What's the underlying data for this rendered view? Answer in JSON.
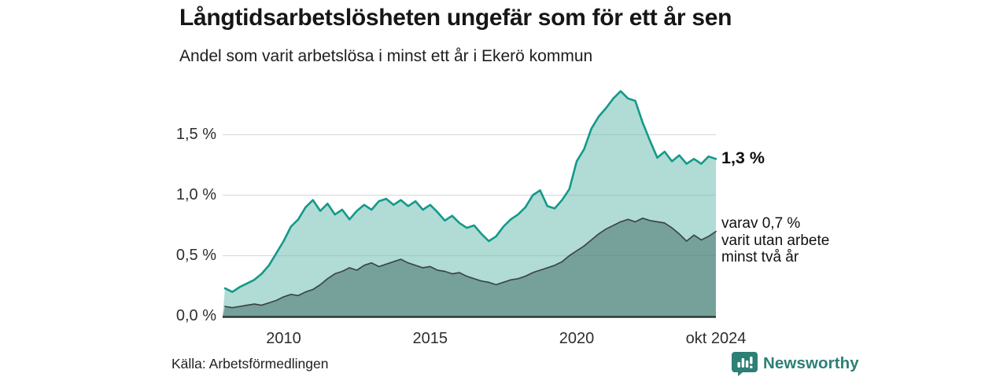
{
  "header": {
    "title": "Långtidsarbetslösheten ungefär som för ett år sen",
    "subtitle": "Andel som varit arbetslösa i minst ett år i Ekerö kommun"
  },
  "footer": {
    "source": "Källa: Arbetsförmedlingen",
    "brand": "Newsworthy",
    "brand_color": "#2d8076"
  },
  "colors": {
    "primary_line": "#13998a",
    "primary_fill": "rgba(99,184,171,0.5)",
    "secondary_line": "#3c4744",
    "secondary_fill": "rgba(47,90,82,0.45)",
    "gridline": "#dcdcdc",
    "axis_line": "#2b3835",
    "tick_text": "#2e2e2e"
  },
  "chart_data": {
    "type": "area",
    "title": "Långtidsarbetslösheten ungefär som för ett år sen",
    "subtitle": "Andel som varit arbetslösa i minst ett år i Ekerö kommun",
    "xlabel": "",
    "ylabel": "",
    "grid": true,
    "legend_position": "none",
    "xlim": [
      2007.92,
      2024.75
    ],
    "ylim": [
      0,
      1.87
    ],
    "y_ticks": [
      {
        "label": "0,0 %",
        "value": 0.0
      },
      {
        "label": "0,5 %",
        "value": 0.5
      },
      {
        "label": "1,0 %",
        "value": 1.0
      },
      {
        "label": "1,5 %",
        "value": 1.5
      }
    ],
    "x_ticks": [
      {
        "label": "2010",
        "value": 2010
      },
      {
        "label": "2015",
        "value": 2015
      },
      {
        "label": "2020",
        "value": 2020
      },
      {
        "label": "okt 2024",
        "value": 2024.75
      }
    ],
    "x": [
      2008.0,
      2008.25,
      2008.5,
      2008.75,
      2009.0,
      2009.25,
      2009.5,
      2009.75,
      2010.0,
      2010.25,
      2010.5,
      2010.75,
      2011.0,
      2011.25,
      2011.5,
      2011.75,
      2012.0,
      2012.25,
      2012.5,
      2012.75,
      2013.0,
      2013.25,
      2013.5,
      2013.75,
      2014.0,
      2014.25,
      2014.5,
      2014.75,
      2015.0,
      2015.25,
      2015.5,
      2015.75,
      2016.0,
      2016.25,
      2016.5,
      2016.75,
      2017.0,
      2017.25,
      2017.5,
      2017.75,
      2018.0,
      2018.25,
      2018.5,
      2018.75,
      2019.0,
      2019.25,
      2019.5,
      2019.75,
      2020.0,
      2020.25,
      2020.5,
      2020.75,
      2021.0,
      2021.25,
      2021.5,
      2021.75,
      2022.0,
      2022.25,
      2022.5,
      2022.75,
      2023.0,
      2023.25,
      2023.5,
      2023.75,
      2024.0,
      2024.25,
      2024.5,
      2024.75
    ],
    "series": [
      {
        "name": "Andel som varit arbetslösa i minst ett år",
        "color": "#13998a",
        "fill": "rgba(99,184,171,0.5)",
        "line_width": 2.6,
        "values": [
          0.23,
          0.2,
          0.24,
          0.27,
          0.3,
          0.35,
          0.42,
          0.52,
          0.62,
          0.74,
          0.8,
          0.9,
          0.96,
          0.87,
          0.93,
          0.84,
          0.88,
          0.8,
          0.87,
          0.92,
          0.88,
          0.95,
          0.97,
          0.92,
          0.96,
          0.91,
          0.95,
          0.88,
          0.92,
          0.86,
          0.79,
          0.83,
          0.77,
          0.73,
          0.75,
          0.68,
          0.62,
          0.66,
          0.74,
          0.8,
          0.84,
          0.9,
          1.0,
          1.04,
          0.91,
          0.89,
          0.96,
          1.05,
          1.28,
          1.38,
          1.55,
          1.65,
          1.72,
          1.8,
          1.86,
          1.8,
          1.78,
          1.6,
          1.45,
          1.31,
          1.36,
          1.28,
          1.33,
          1.26,
          1.3,
          1.26,
          1.32,
          1.3
        ]
      },
      {
        "name": "Andel som varit utan arbete minst två år",
        "color": "#3c4744",
        "fill": "rgba(47,90,82,0.45)",
        "line_width": 1.7,
        "values": [
          0.08,
          0.07,
          0.08,
          0.09,
          0.1,
          0.09,
          0.11,
          0.13,
          0.16,
          0.18,
          0.17,
          0.2,
          0.22,
          0.26,
          0.31,
          0.35,
          0.37,
          0.4,
          0.38,
          0.42,
          0.44,
          0.41,
          0.43,
          0.45,
          0.47,
          0.44,
          0.42,
          0.4,
          0.41,
          0.38,
          0.37,
          0.35,
          0.36,
          0.33,
          0.31,
          0.29,
          0.28,
          0.26,
          0.28,
          0.3,
          0.31,
          0.33,
          0.36,
          0.38,
          0.4,
          0.42,
          0.45,
          0.5,
          0.54,
          0.58,
          0.63,
          0.68,
          0.72,
          0.75,
          0.78,
          0.8,
          0.78,
          0.81,
          0.79,
          0.78,
          0.77,
          0.73,
          0.68,
          0.62,
          0.67,
          0.63,
          0.66,
          0.7
        ]
      }
    ],
    "annotations": {
      "end_value_label": "1,3 %",
      "secondary_label_lines": [
        "varav 0,7 %",
        "varit utan arbete",
        "minst två år"
      ]
    }
  }
}
